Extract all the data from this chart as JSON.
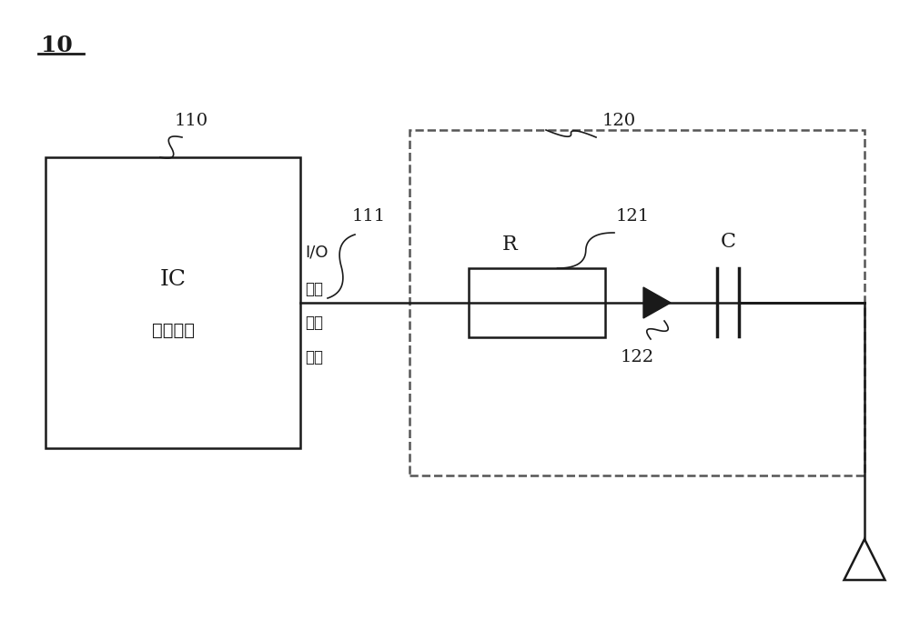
{
  "bg_color": "#ffffff",
  "line_color": "#1a1a1a",
  "dashed_color": "#555555",
  "figsize": [
    10.0,
    6.93
  ],
  "dpi": 100,
  "labels": {
    "fig_num": "10",
    "ic_line1": "IC",
    "ic_line2": "集成电路",
    "io_line1": "I/O",
    "io_line2": "输入",
    "io_line3": "输出",
    "io_line4": "端口",
    "R_label": "R",
    "C_label": "C",
    "ref_110": "110",
    "ref_120": "120",
    "ref_111": "111",
    "ref_121": "121",
    "ref_122": "122"
  }
}
